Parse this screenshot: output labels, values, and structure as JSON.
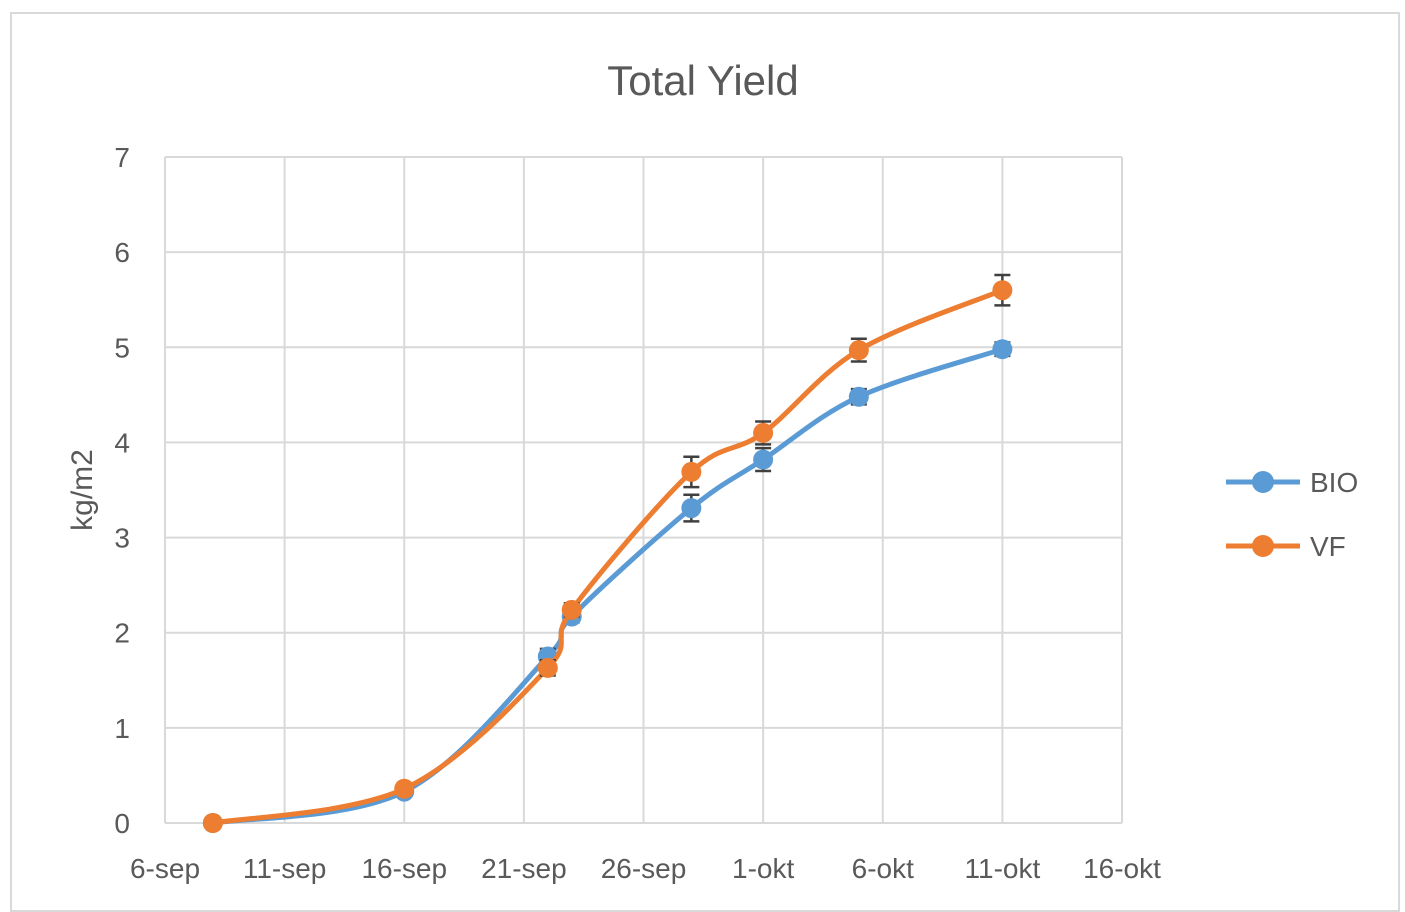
{
  "chart_data": {
    "type": "line",
    "title": "Total Yield",
    "xlabel": "",
    "ylabel": "kg/m2",
    "x_axis": {
      "type": "date",
      "ticks": [
        "6-sep",
        "11-sep",
        "16-sep",
        "21-sep",
        "26-sep",
        "1-okt",
        "6-okt",
        "11-okt",
        "16-okt"
      ],
      "range": [
        "6-sep",
        "16-okt"
      ]
    },
    "ylim": [
      0,
      7
    ],
    "y_ticks": [
      "0",
      "1",
      "2",
      "3",
      "4",
      "5",
      "6",
      "7"
    ],
    "grid": true,
    "legend_position": "right",
    "series": [
      {
        "name": "BIO",
        "color": "#5b9bd5",
        "points": [
          {
            "x": "8-sep",
            "y": 0.0,
            "err": 0.0
          },
          {
            "x": "16-sep",
            "y": 0.33,
            "err": 0.04
          },
          {
            "x": "22-sep",
            "y": 1.75,
            "err": 0.08
          },
          {
            "x": "23-sep",
            "y": 2.17,
            "err": 0.06
          },
          {
            "x": "28-sep",
            "y": 3.31,
            "err": 0.14
          },
          {
            "x": "1-okt",
            "y": 3.82,
            "err": 0.12
          },
          {
            "x": "5-okt",
            "y": 4.48,
            "err": 0.08
          },
          {
            "x": "11-okt",
            "y": 4.98,
            "err": 0.07
          }
        ]
      },
      {
        "name": "VF",
        "color": "#ed7d31",
        "points": [
          {
            "x": "8-sep",
            "y": 0.0,
            "err": 0.0
          },
          {
            "x": "16-sep",
            "y": 0.36,
            "err": 0.04
          },
          {
            "x": "22-sep",
            "y": 1.63,
            "err": 0.08
          },
          {
            "x": "23-sep",
            "y": 2.24,
            "err": 0.07
          },
          {
            "x": "28-sep",
            "y": 3.69,
            "err": 0.16
          },
          {
            "x": "1-okt",
            "y": 4.1,
            "err": 0.12
          },
          {
            "x": "5-okt",
            "y": 4.97,
            "err": 0.12
          },
          {
            "x": "11-okt",
            "y": 5.6,
            "err": 0.16
          }
        ]
      }
    ]
  }
}
